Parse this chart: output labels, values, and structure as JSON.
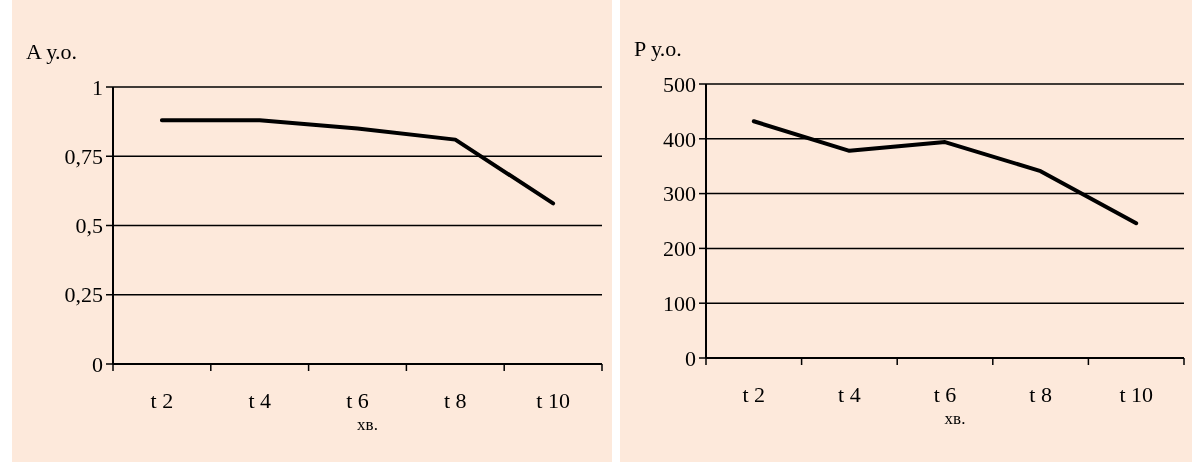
{
  "chart_data": [
    {
      "type": "line",
      "ylabel": "A у.о.",
      "xlabel": "хв.",
      "categories": [
        "t 2",
        "t 4",
        "t 6",
        "t 8",
        "t 10"
      ],
      "series": [
        {
          "color": "#000000",
          "values": [
            0.88,
            0.88,
            0.85,
            0.81,
            0.58
          ]
        }
      ],
      "ylim": [
        0,
        1
      ],
      "yticks": [
        0,
        {
          "value": 0.25,
          "label": "0,25"
        },
        {
          "value": 0.5,
          "label": "0,5"
        },
        {
          "value": 0.75,
          "label": "0,75"
        },
        1
      ],
      "grid": "y",
      "marker": "none",
      "line_style": "solid"
    },
    {
      "type": "line",
      "ylabel": "P у.о.",
      "xlabel": "хв.",
      "categories": [
        "t 2",
        "t 4",
        "t 6",
        "t 8",
        "t 10"
      ],
      "series": [
        {
          "color": "#000000",
          "values": [
            432,
            378,
            394,
            341,
            246
          ]
        }
      ],
      "ylim": [
        0,
        500
      ],
      "yticks": [
        0,
        100,
        200,
        300,
        400,
        500
      ],
      "grid": "y",
      "marker": "none",
      "line_style": "solid"
    }
  ]
}
